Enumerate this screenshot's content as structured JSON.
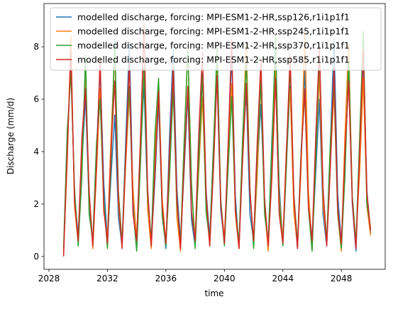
{
  "chart_data": {
    "type": "line",
    "xlabel": "time",
    "ylabel": "Discharge (mm/d)",
    "x": [
      2029,
      2029.25,
      2029.5,
      2029.75,
      2030,
      2030.25,
      2030.5,
      2030.75,
      2031,
      2031.25,
      2031.5,
      2031.75,
      2032,
      2032.25,
      2032.5,
      2032.75,
      2033,
      2033.25,
      2033.5,
      2033.75,
      2034,
      2034.25,
      2034.5,
      2034.75,
      2035,
      2035.25,
      2035.5,
      2035.75,
      2036,
      2036.25,
      2036.5,
      2036.75,
      2037,
      2037.25,
      2037.5,
      2037.75,
      2038,
      2038.25,
      2038.5,
      2038.75,
      2039,
      2039.25,
      2039.5,
      2039.75,
      2040,
      2040.25,
      2040.5,
      2040.75,
      2041,
      2041.25,
      2041.5,
      2041.75,
      2042,
      2042.25,
      2042.5,
      2042.75,
      2043,
      2043.25,
      2043.5,
      2043.75,
      2044,
      2044.25,
      2044.5,
      2044.75,
      2045,
      2045.25,
      2045.5,
      2045.75,
      2046,
      2046.25,
      2046.5,
      2046.75,
      2047,
      2047.25,
      2047.5,
      2047.75,
      2048,
      2048.25,
      2048.5,
      2048.75,
      2049,
      2049.25,
      2049.5,
      2049.75,
      2050
    ],
    "series": [
      {
        "name": "modelled discharge, forcing: MPI-ESM1-2-HR,ssp126,r1i1p1f1",
        "color": "#1f77b4",
        "values": [
          0.1,
          4.2,
          7.5,
          2.3,
          0.8,
          3.5,
          6.1,
          1.9,
          0.5,
          4.0,
          7.2,
          2.8,
          0.6,
          3.1,
          5.4,
          1.5,
          0.4,
          4.4,
          8.1,
          2.2,
          0.7,
          3.8,
          6.6,
          2.0,
          0.5,
          2.9,
          5.9,
          1.7,
          0.3,
          4.6,
          7.9,
          2.6,
          0.6,
          3.3,
          6.2,
          1.4,
          0.4,
          3.9,
          7.0,
          2.5,
          0.7,
          4.2,
          6.8,
          1.8,
          0.5,
          3.6,
          7.7,
          2.3,
          0.3,
          4.1,
          6.3,
          1.6,
          0.6,
          3.4,
          5.8,
          2.1,
          0.4,
          4.5,
          7.4,
          2.7,
          0.5,
          3.7,
          6.5,
          1.9,
          0.3,
          4.0,
          7.1,
          2.2,
          0.6,
          3.2,
          6.0,
          1.6,
          0.4,
          4.3,
          8.3,
          2.4,
          0.5,
          3.8,
          6.9,
          2.0,
          0.2,
          4.1,
          7.6,
          2.5,
          0.9
        ]
      },
      {
        "name": "modelled discharge, forcing: MPI-ESM1-2-HR,ssp245,r1i1p1f1",
        "color": "#ff7f0e",
        "values": [
          0.2,
          3.6,
          8.4,
          1.9,
          0.5,
          4.3,
          6.9,
          2.4,
          0.3,
          3.2,
          6.4,
          1.7,
          0.7,
          4.6,
          7.8,
          2.0,
          0.4,
          3.5,
          6.2,
          2.6,
          0.6,
          4.1,
          8.9,
          1.8,
          0.3,
          3.9,
          6.7,
          2.2,
          0.5,
          3.0,
          7.3,
          1.5,
          0.2,
          4.4,
          8.0,
          2.7,
          0.6,
          3.3,
          6.1,
          1.9,
          0.4,
          4.0,
          7.5,
          2.1,
          0.7,
          3.7,
          6.6,
          1.6,
          0.3,
          4.5,
          8.2,
          2.4,
          0.5,
          3.1,
          6.9,
          1.8,
          0.2,
          3.8,
          7.1,
          2.3,
          0.6,
          4.2,
          6.4,
          1.7,
          0.4,
          3.4,
          8.6,
          2.5,
          0.3,
          4.0,
          7.0,
          2.0,
          0.5,
          3.6,
          6.3,
          1.6,
          0.2,
          4.7,
          8.1,
          2.2,
          0.6,
          3.2,
          6.8,
          1.9,
          0.8
        ]
      },
      {
        "name": "modelled discharge, forcing: MPI-ESM1-2-HR,ssp370,r1i1p1f1",
        "color": "#2ca02c",
        "values": [
          0.3,
          4.8,
          7.0,
          2.6,
          0.4,
          3.0,
          7.7,
          1.6,
          0.6,
          4.3,
          6.0,
          2.1,
          0.3,
          3.7,
          8.3,
          2.5,
          0.5,
          4.0,
          6.5,
          1.8,
          0.2,
          3.4,
          7.2,
          2.3,
          0.6,
          4.7,
          6.8,
          1.5,
          0.4,
          3.1,
          6.4,
          2.0,
          0.5,
          4.4,
          7.9,
          2.8,
          0.3,
          3.6,
          6.9,
          1.7,
          0.6,
          4.1,
          8.0,
          2.2,
          0.4,
          3.3,
          6.1,
          1.9,
          0.5,
          4.6,
          7.4,
          2.6,
          0.3,
          3.9,
          6.7,
          1.6,
          0.6,
          4.2,
          8.4,
          2.1,
          0.4,
          3.5,
          7.3,
          2.4,
          0.5,
          4.0,
          6.2,
          1.8,
          0.2,
          3.7,
          7.8,
          2.5,
          0.6,
          4.4,
          6.6,
          1.7,
          0.3,
          3.1,
          7.5,
          2.3,
          0.5,
          4.5,
          8.6,
          2.0,
          1.1
        ]
      },
      {
        "name": "modelled discharge, forcing: MPI-ESM1-2-HR,ssp585,r1i1p1f1",
        "color": "#d62728",
        "values": [
          0.0,
          3.9,
          7.9,
          2.1,
          0.6,
          4.5,
          6.4,
          2.5,
          0.4,
          3.4,
          7.6,
          1.8,
          0.5,
          4.1,
          6.7,
          2.3,
          0.3,
          3.8,
          7.4,
          1.6,
          0.6,
          4.4,
          8.7,
          2.6,
          0.4,
          3.2,
          6.3,
          1.9,
          0.5,
          4.0,
          7.1,
          2.2,
          0.3,
          3.6,
          6.5,
          1.7,
          0.6,
          4.7,
          7.8,
          2.4,
          0.4,
          3.3,
          6.9,
          2.0,
          0.5,
          4.2,
          8.3,
          1.8,
          0.3,
          3.7,
          6.6,
          2.5,
          0.6,
          4.4,
          7.5,
          2.2,
          0.4,
          3.0,
          6.8,
          1.6,
          0.5,
          4.1,
          7.7,
          2.3,
          0.3,
          3.8,
          6.4,
          1.9,
          0.6,
          4.6,
          8.0,
          2.6,
          0.4,
          3.4,
          7.2,
          1.8,
          0.5,
          4.0,
          6.7,
          2.1,
          0.3,
          3.9,
          7.9,
          2.4,
          1.0
        ]
      }
    ],
    "xlim": [
      2027.66,
      2051.0
    ],
    "xticks": [
      2028,
      2032,
      2036,
      2040,
      2044,
      2048
    ],
    "ylim": [
      -0.49,
      9.65
    ],
    "yticks": [
      0,
      2,
      4,
      6,
      8
    ],
    "grid": false,
    "legend": "upper right"
  }
}
